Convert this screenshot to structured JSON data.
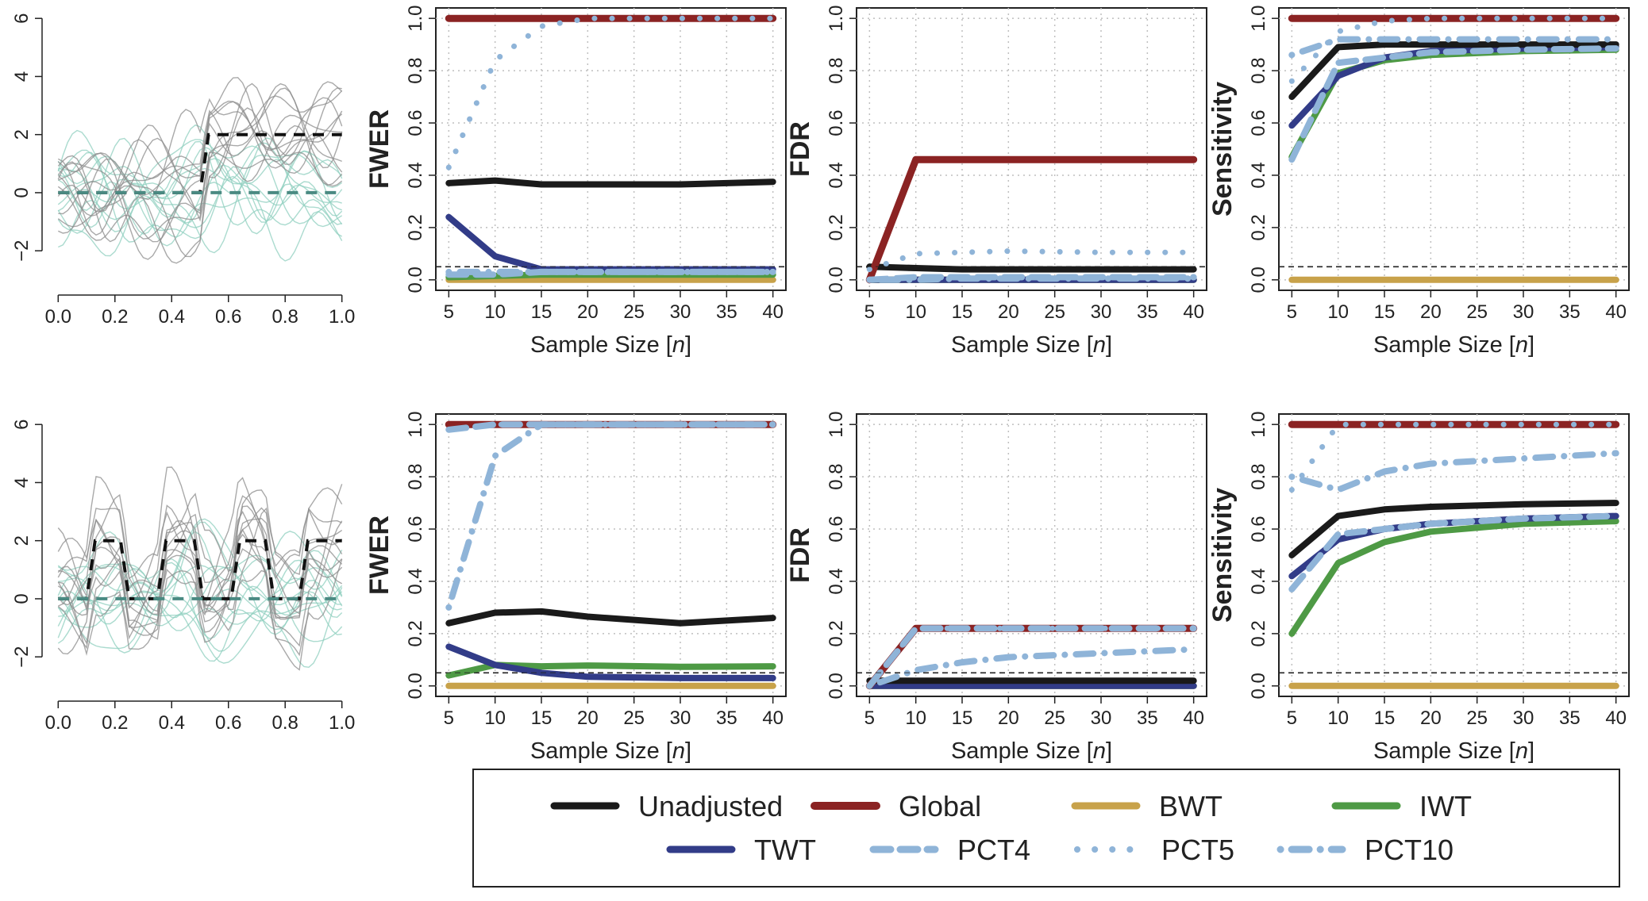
{
  "figure": {
    "panel_xlabel": "Sample Size [n]",
    "legend_label": [
      "Unadjusted",
      "Global",
      "BWT",
      "IWT",
      "TWT",
      "PCT4",
      "PCT5",
      "PCT10"
    ]
  },
  "colors": {
    "Unadjusted": "#1a1a1a",
    "Global": "#8b2323",
    "BWT": "#c8a24a",
    "IWT": "#4e9a45",
    "TWT": "#323c88",
    "PCT4": "#8fb4d8",
    "PCT5": "#8fb4d8",
    "PCT10": "#8fb4d8",
    "curves_gray": "#8c8c8c",
    "curves_teal": "#8fcfbf",
    "mean_teal": "#4a8a82",
    "grid": "#bfbfbf"
  },
  "chart_data": [
    {
      "id": "curves-top",
      "type": "line",
      "title": "",
      "xlabel": "",
      "ylabel": "",
      "xlim": [
        0,
        1
      ],
      "ylim": [
        -3,
        6
      ],
      "xticks": [
        "0.0",
        "0.2",
        "0.4",
        "0.6",
        "0.8",
        "1.0"
      ],
      "yticks": [
        "−2",
        "0",
        "2",
        "4",
        "6"
      ],
      "series": [
        {
          "role": "mean-group-1",
          "style": "dashed-black",
          "x": [
            0,
            0.5,
            0.53,
            1.0
          ],
          "values": [
            0,
            0,
            2,
            2
          ]
        },
        {
          "role": "mean-group-2",
          "style": "dashed-teal",
          "x": [
            0,
            1.0
          ],
          "values": [
            0,
            0
          ]
        }
      ],
      "background_curves": {
        "count_each_group": 12,
        "noise_sd": 1.0,
        "seed": 7
      }
    },
    {
      "id": "fwer-top",
      "type": "line",
      "xlabel": "Sample Size [n]",
      "ylabel": "FWER",
      "xlim": [
        5,
        40
      ],
      "ylim": [
        0,
        1
      ],
      "xticks": [
        "5",
        "10",
        "15",
        "20",
        "25",
        "30",
        "35",
        "40"
      ],
      "yticks": [
        "0.0",
        "0.2",
        "0.4",
        "0.6",
        "0.8",
        "1.0"
      ],
      "reference_line": 0.05,
      "x": [
        5,
        10,
        15,
        20,
        30,
        40
      ],
      "series": [
        {
          "name": "Unadjusted",
          "values": [
            0.37,
            0.38,
            0.365,
            0.365,
            0.365,
            0.375
          ]
        },
        {
          "name": "Global",
          "values": [
            1.0,
            1.0,
            1.0,
            1.0,
            1.0,
            1.0
          ]
        },
        {
          "name": "BWT",
          "values": [
            0.0,
            0.0,
            0.0,
            0.0,
            0.0,
            0.0
          ]
        },
        {
          "name": "IWT",
          "values": [
            0.01,
            0.015,
            0.02,
            0.02,
            0.02,
            0.02
          ]
        },
        {
          "name": "TWT",
          "values": [
            0.24,
            0.09,
            0.04,
            0.04,
            0.04,
            0.04
          ]
        },
        {
          "name": "PCT4",
          "values": [
            0.02,
            0.02,
            0.03,
            0.03,
            0.03,
            0.03
          ]
        },
        {
          "name": "PCT5",
          "values": [
            0.43,
            0.84,
            0.97,
            1.0,
            1.0,
            1.0
          ]
        },
        {
          "name": "PCT10",
          "values": [
            0.03,
            0.03,
            0.03,
            0.03,
            0.03,
            0.03
          ]
        }
      ]
    },
    {
      "id": "fdr-top",
      "type": "line",
      "xlabel": "Sample Size [n]",
      "ylabel": "FDR",
      "xlim": [
        5,
        40
      ],
      "ylim": [
        0,
        1
      ],
      "xticks": [
        "5",
        "10",
        "15",
        "20",
        "25",
        "30",
        "35",
        "40"
      ],
      "yticks": [
        "0.0",
        "0.2",
        "0.4",
        "0.6",
        "0.8",
        "1.0"
      ],
      "reference_line": 0.05,
      "x": [
        5,
        10,
        15,
        20,
        30,
        40
      ],
      "series": [
        {
          "name": "Unadjusted",
          "values": [
            0.05,
            0.045,
            0.04,
            0.04,
            0.04,
            0.04
          ]
        },
        {
          "name": "Global",
          "values": [
            0.0,
            0.46,
            0.46,
            0.46,
            0.46,
            0.46
          ]
        },
        {
          "name": "BWT",
          "values": [
            0.0,
            0.0,
            0.0,
            0.0,
            0.0,
            0.0
          ]
        },
        {
          "name": "IWT",
          "values": [
            0.0,
            0.0,
            0.0,
            0.0,
            0.0,
            0.0
          ]
        },
        {
          "name": "TWT",
          "values": [
            0.0,
            0.0,
            0.0,
            0.0,
            0.0,
            0.0
          ]
        },
        {
          "name": "PCT4",
          "values": [
            0.0,
            0.01,
            0.01,
            0.01,
            0.01,
            0.01
          ]
        },
        {
          "name": "PCT5",
          "values": [
            0.04,
            0.1,
            0.105,
            0.11,
            0.105,
            0.105
          ]
        },
        {
          "name": "PCT10",
          "values": [
            0.0,
            0.0,
            0.005,
            0.005,
            0.005,
            0.005
          ]
        }
      ]
    },
    {
      "id": "sens-top",
      "type": "line",
      "xlabel": "Sample Size [n]",
      "ylabel": "Sensitivity",
      "xlim": [
        5,
        40
      ],
      "ylim": [
        0,
        1
      ],
      "xticks": [
        "5",
        "10",
        "15",
        "20",
        "25",
        "30",
        "35",
        "40"
      ],
      "yticks": [
        "0.0",
        "0.2",
        "0.4",
        "0.6",
        "0.8",
        "1.0"
      ],
      "reference_line": 0.05,
      "x": [
        5,
        10,
        15,
        20,
        30,
        40
      ],
      "series": [
        {
          "name": "Unadjusted",
          "values": [
            0.7,
            0.89,
            0.9,
            0.9,
            0.9,
            0.9
          ]
        },
        {
          "name": "Global",
          "values": [
            1.0,
            1.0,
            1.0,
            1.0,
            1.0,
            1.0
          ]
        },
        {
          "name": "BWT",
          "values": [
            0.0,
            0.0,
            0.0,
            0.0,
            0.0,
            0.0
          ]
        },
        {
          "name": "IWT",
          "values": [
            0.47,
            0.79,
            0.84,
            0.86,
            0.875,
            0.88
          ]
        },
        {
          "name": "TWT",
          "values": [
            0.59,
            0.78,
            0.85,
            0.875,
            0.885,
            0.89
          ]
        },
        {
          "name": "PCT4",
          "values": [
            0.46,
            0.83,
            0.85,
            0.87,
            0.88,
            0.885
          ]
        },
        {
          "name": "PCT5",
          "values": [
            0.76,
            0.95,
            0.99,
            1.0,
            1.0,
            1.0
          ]
        },
        {
          "name": "PCT10",
          "values": [
            0.86,
            0.92,
            0.92,
            0.92,
            0.92,
            0.92
          ]
        }
      ]
    },
    {
      "id": "curves-bottom",
      "type": "line",
      "title": "",
      "xlabel": "",
      "ylabel": "",
      "xlim": [
        0,
        1
      ],
      "ylim": [
        -3,
        6
      ],
      "xticks": [
        "0.0",
        "0.2",
        "0.4",
        "0.6",
        "0.8",
        "1.0"
      ],
      "yticks": [
        "−2",
        "0",
        "2",
        "4",
        "6"
      ],
      "series": [
        {
          "role": "mean-group-1",
          "style": "dashed-black",
          "x": [
            0,
            0.1,
            0.13,
            0.22,
            0.25,
            0.35,
            0.38,
            0.48,
            0.51,
            0.61,
            0.64,
            0.73,
            0.76,
            0.85,
            0.88,
            1.0
          ],
          "values": [
            0,
            0,
            2,
            2,
            0,
            0,
            2,
            2,
            0,
            0,
            2,
            2,
            0,
            0,
            2,
            2
          ]
        },
        {
          "role": "mean-group-2",
          "style": "dashed-teal",
          "x": [
            0,
            1.0
          ],
          "values": [
            0,
            0
          ]
        }
      ],
      "background_curves": {
        "count_each_group": 12,
        "noise_sd": 1.0,
        "seed": 13
      }
    },
    {
      "id": "fwer-bottom",
      "type": "line",
      "xlabel": "Sample Size [n]",
      "ylabel": "FWER",
      "xlim": [
        5,
        40
      ],
      "ylim": [
        0,
        1
      ],
      "xticks": [
        "5",
        "10",
        "15",
        "20",
        "25",
        "30",
        "35",
        "40"
      ],
      "yticks": [
        "0.0",
        "0.2",
        "0.4",
        "0.6",
        "0.8",
        "1.0"
      ],
      "reference_line": 0.05,
      "x": [
        5,
        10,
        15,
        20,
        30,
        40
      ],
      "series": [
        {
          "name": "Unadjusted",
          "values": [
            0.24,
            0.28,
            0.285,
            0.265,
            0.24,
            0.26
          ]
        },
        {
          "name": "Global",
          "values": [
            1.0,
            1.0,
            1.0,
            1.0,
            1.0,
            1.0
          ]
        },
        {
          "name": "BWT",
          "values": [
            0.0,
            0.0,
            0.0,
            0.0,
            0.0,
            0.0
          ]
        },
        {
          "name": "IWT",
          "values": [
            0.04,
            0.08,
            0.075,
            0.078,
            0.073,
            0.075
          ]
        },
        {
          "name": "TWT",
          "values": [
            0.15,
            0.08,
            0.05,
            0.035,
            0.03,
            0.03
          ]
        },
        {
          "name": "PCT4",
          "values": [
            0.98,
            1.0,
            1.0,
            1.0,
            1.0,
            1.0
          ]
        },
        {
          "name": "PCT5",
          "values": [
            0.98,
            1.0,
            1.0,
            1.0,
            1.0,
            1.0
          ]
        },
        {
          "name": "PCT10",
          "values": [
            0.3,
            0.88,
            1.0,
            1.0,
            1.0,
            1.0
          ]
        }
      ]
    },
    {
      "id": "fdr-bottom",
      "type": "line",
      "xlabel": "Sample Size [n]",
      "ylabel": "FDR",
      "xlim": [
        5,
        40
      ],
      "ylim": [
        0,
        1
      ],
      "xticks": [
        "5",
        "10",
        "15",
        "20",
        "25",
        "30",
        "35",
        "40"
      ],
      "yticks": [
        "0.0",
        "0.2",
        "0.4",
        "0.6",
        "0.8",
        "1.0"
      ],
      "reference_line": 0.05,
      "x": [
        5,
        10,
        15,
        20,
        30,
        40
      ],
      "series": [
        {
          "name": "Unadjusted",
          "values": [
            0.02,
            0.02,
            0.02,
            0.02,
            0.02,
            0.02
          ]
        },
        {
          "name": "Global",
          "values": [
            0.0,
            0.22,
            0.22,
            0.22,
            0.22,
            0.22
          ]
        },
        {
          "name": "BWT",
          "values": [
            0.0,
            0.0,
            0.0,
            0.0,
            0.0,
            0.0
          ]
        },
        {
          "name": "IWT",
          "values": [
            0.0,
            0.0,
            0.0,
            0.0,
            0.0,
            0.0
          ]
        },
        {
          "name": "TWT",
          "values": [
            0.0,
            0.0,
            0.0,
            0.0,
            0.0,
            0.0
          ]
        },
        {
          "name": "PCT4",
          "values": [
            0.0,
            0.22,
            0.22,
            0.22,
            0.22,
            0.22
          ]
        },
        {
          "name": "PCT5",
          "values": [
            0.0,
            0.22,
            0.22,
            0.22,
            0.22,
            0.22
          ]
        },
        {
          "name": "PCT10",
          "values": [
            0.0,
            0.06,
            0.09,
            0.11,
            0.125,
            0.14
          ]
        }
      ]
    },
    {
      "id": "sens-bottom",
      "type": "line",
      "xlabel": "Sample Size [n]",
      "ylabel": "Sensitivity",
      "xlim": [
        5,
        40
      ],
      "ylim": [
        0,
        1
      ],
      "xticks": [
        "5",
        "10",
        "15",
        "20",
        "25",
        "30",
        "35",
        "40"
      ],
      "yticks": [
        "0.0",
        "0.2",
        "0.4",
        "0.6",
        "0.8",
        "1.0"
      ],
      "reference_line": 0.05,
      "x": [
        5,
        10,
        15,
        20,
        30,
        40
      ],
      "series": [
        {
          "name": "Unadjusted",
          "values": [
            0.5,
            0.65,
            0.675,
            0.685,
            0.695,
            0.7
          ]
        },
        {
          "name": "Global",
          "values": [
            1.0,
            1.0,
            1.0,
            1.0,
            1.0,
            1.0
          ]
        },
        {
          "name": "BWT",
          "values": [
            0.0,
            0.0,
            0.0,
            0.0,
            0.0,
            0.0
          ]
        },
        {
          "name": "IWT",
          "values": [
            0.2,
            0.47,
            0.55,
            0.59,
            0.62,
            0.63
          ]
        },
        {
          "name": "TWT",
          "values": [
            0.42,
            0.56,
            0.6,
            0.62,
            0.64,
            0.65
          ]
        },
        {
          "name": "PCT4",
          "values": [
            0.37,
            0.58,
            0.6,
            0.62,
            0.64,
            0.65
          ]
        },
        {
          "name": "PCT5",
          "values": [
            0.75,
            1.0,
            1.0,
            1.0,
            1.0,
            1.0
          ]
        },
        {
          "name": "PCT10",
          "values": [
            0.8,
            0.75,
            0.82,
            0.85,
            0.87,
            0.89
          ]
        }
      ]
    }
  ]
}
